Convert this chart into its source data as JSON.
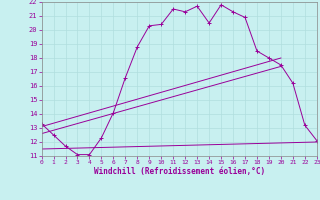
{
  "xlabel": "Windchill (Refroidissement éolien,°C)",
  "background_color": "#c8f0f0",
  "grid_color": "#b0dede",
  "line_color": "#990099",
  "xlim": [
    0,
    23
  ],
  "ylim": [
    11,
    22
  ],
  "x_ticks": [
    0,
    1,
    2,
    3,
    4,
    5,
    6,
    7,
    8,
    9,
    10,
    11,
    12,
    13,
    14,
    15,
    16,
    17,
    18,
    19,
    20,
    21,
    22,
    23
  ],
  "y_ticks": [
    11,
    12,
    13,
    14,
    15,
    16,
    17,
    18,
    19,
    20,
    21,
    22
  ],
  "hours": [
    0,
    1,
    2,
    3,
    4,
    5,
    6,
    7,
    8,
    9,
    10,
    11,
    12,
    13,
    14,
    15,
    16,
    17,
    18,
    19,
    20,
    21,
    22,
    23
  ],
  "line1_y": [
    13.3,
    12.5,
    11.7,
    11.1,
    11.1,
    12.3,
    14.1,
    16.6,
    18.8,
    20.3,
    20.4,
    21.5,
    21.3,
    21.7,
    20.5,
    21.8,
    21.3,
    20.9,
    18.5,
    18.0,
    17.5,
    16.2,
    13.2,
    12.1
  ],
  "line2_x": [
    0,
    20
  ],
  "line2_y": [
    13.1,
    18.0
  ],
  "line3_x": [
    0,
    20
  ],
  "line3_y": [
    12.6,
    17.4
  ],
  "line4_x": [
    0,
    23
  ],
  "line4_y": [
    11.5,
    12.0
  ]
}
